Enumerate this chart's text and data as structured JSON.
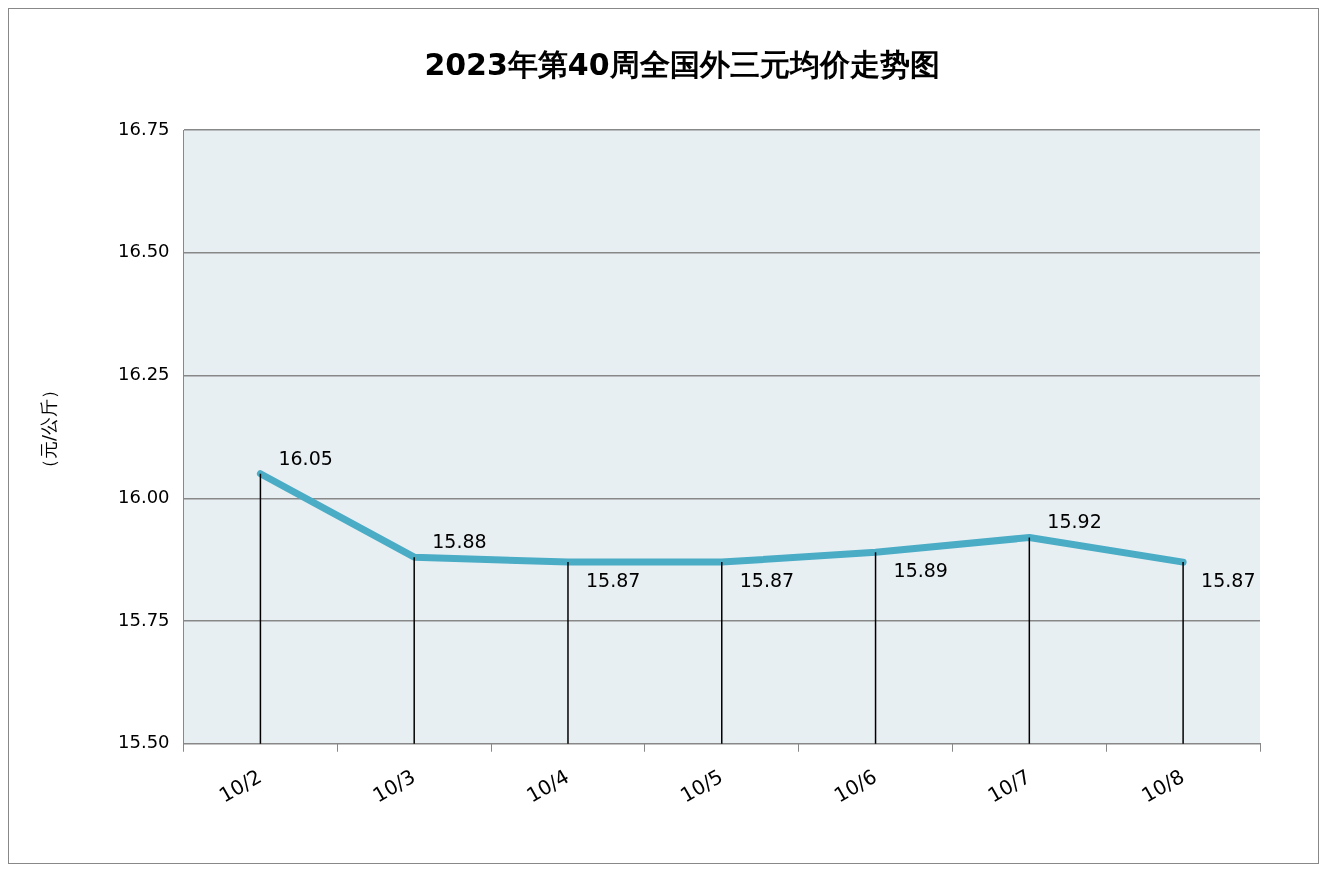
{
  "chart_data": {
    "type": "line",
    "title": "2023年第40周全国外三元均价走势图",
    "ylabel": "（元/公斤）",
    "categories": [
      "10/2",
      "10/3",
      "10/4",
      "10/5",
      "10/6",
      "10/7",
      "10/8"
    ],
    "series": [
      {
        "color": "#4bacc6",
        "values": [
          16.05,
          15.88,
          15.87,
          15.87,
          15.89,
          15.92,
          15.87
        ]
      }
    ],
    "ylim": [
      15.5,
      16.75
    ],
    "yticks": [
      {
        "value": 15.5,
        "label": "15.50"
      },
      {
        "value": 15.75,
        "label": "15.75"
      },
      {
        "value": 16,
        "label": "16.00"
      },
      {
        "value": 16.25,
        "label": "16.25"
      },
      {
        "value": 16.5,
        "label": "16.50"
      },
      {
        "value": 16.75,
        "label": "16.75"
      }
    ],
    "grid": "y",
    "data_labels": true,
    "legend": false,
    "marker": "none",
    "line_style": "solid"
  }
}
